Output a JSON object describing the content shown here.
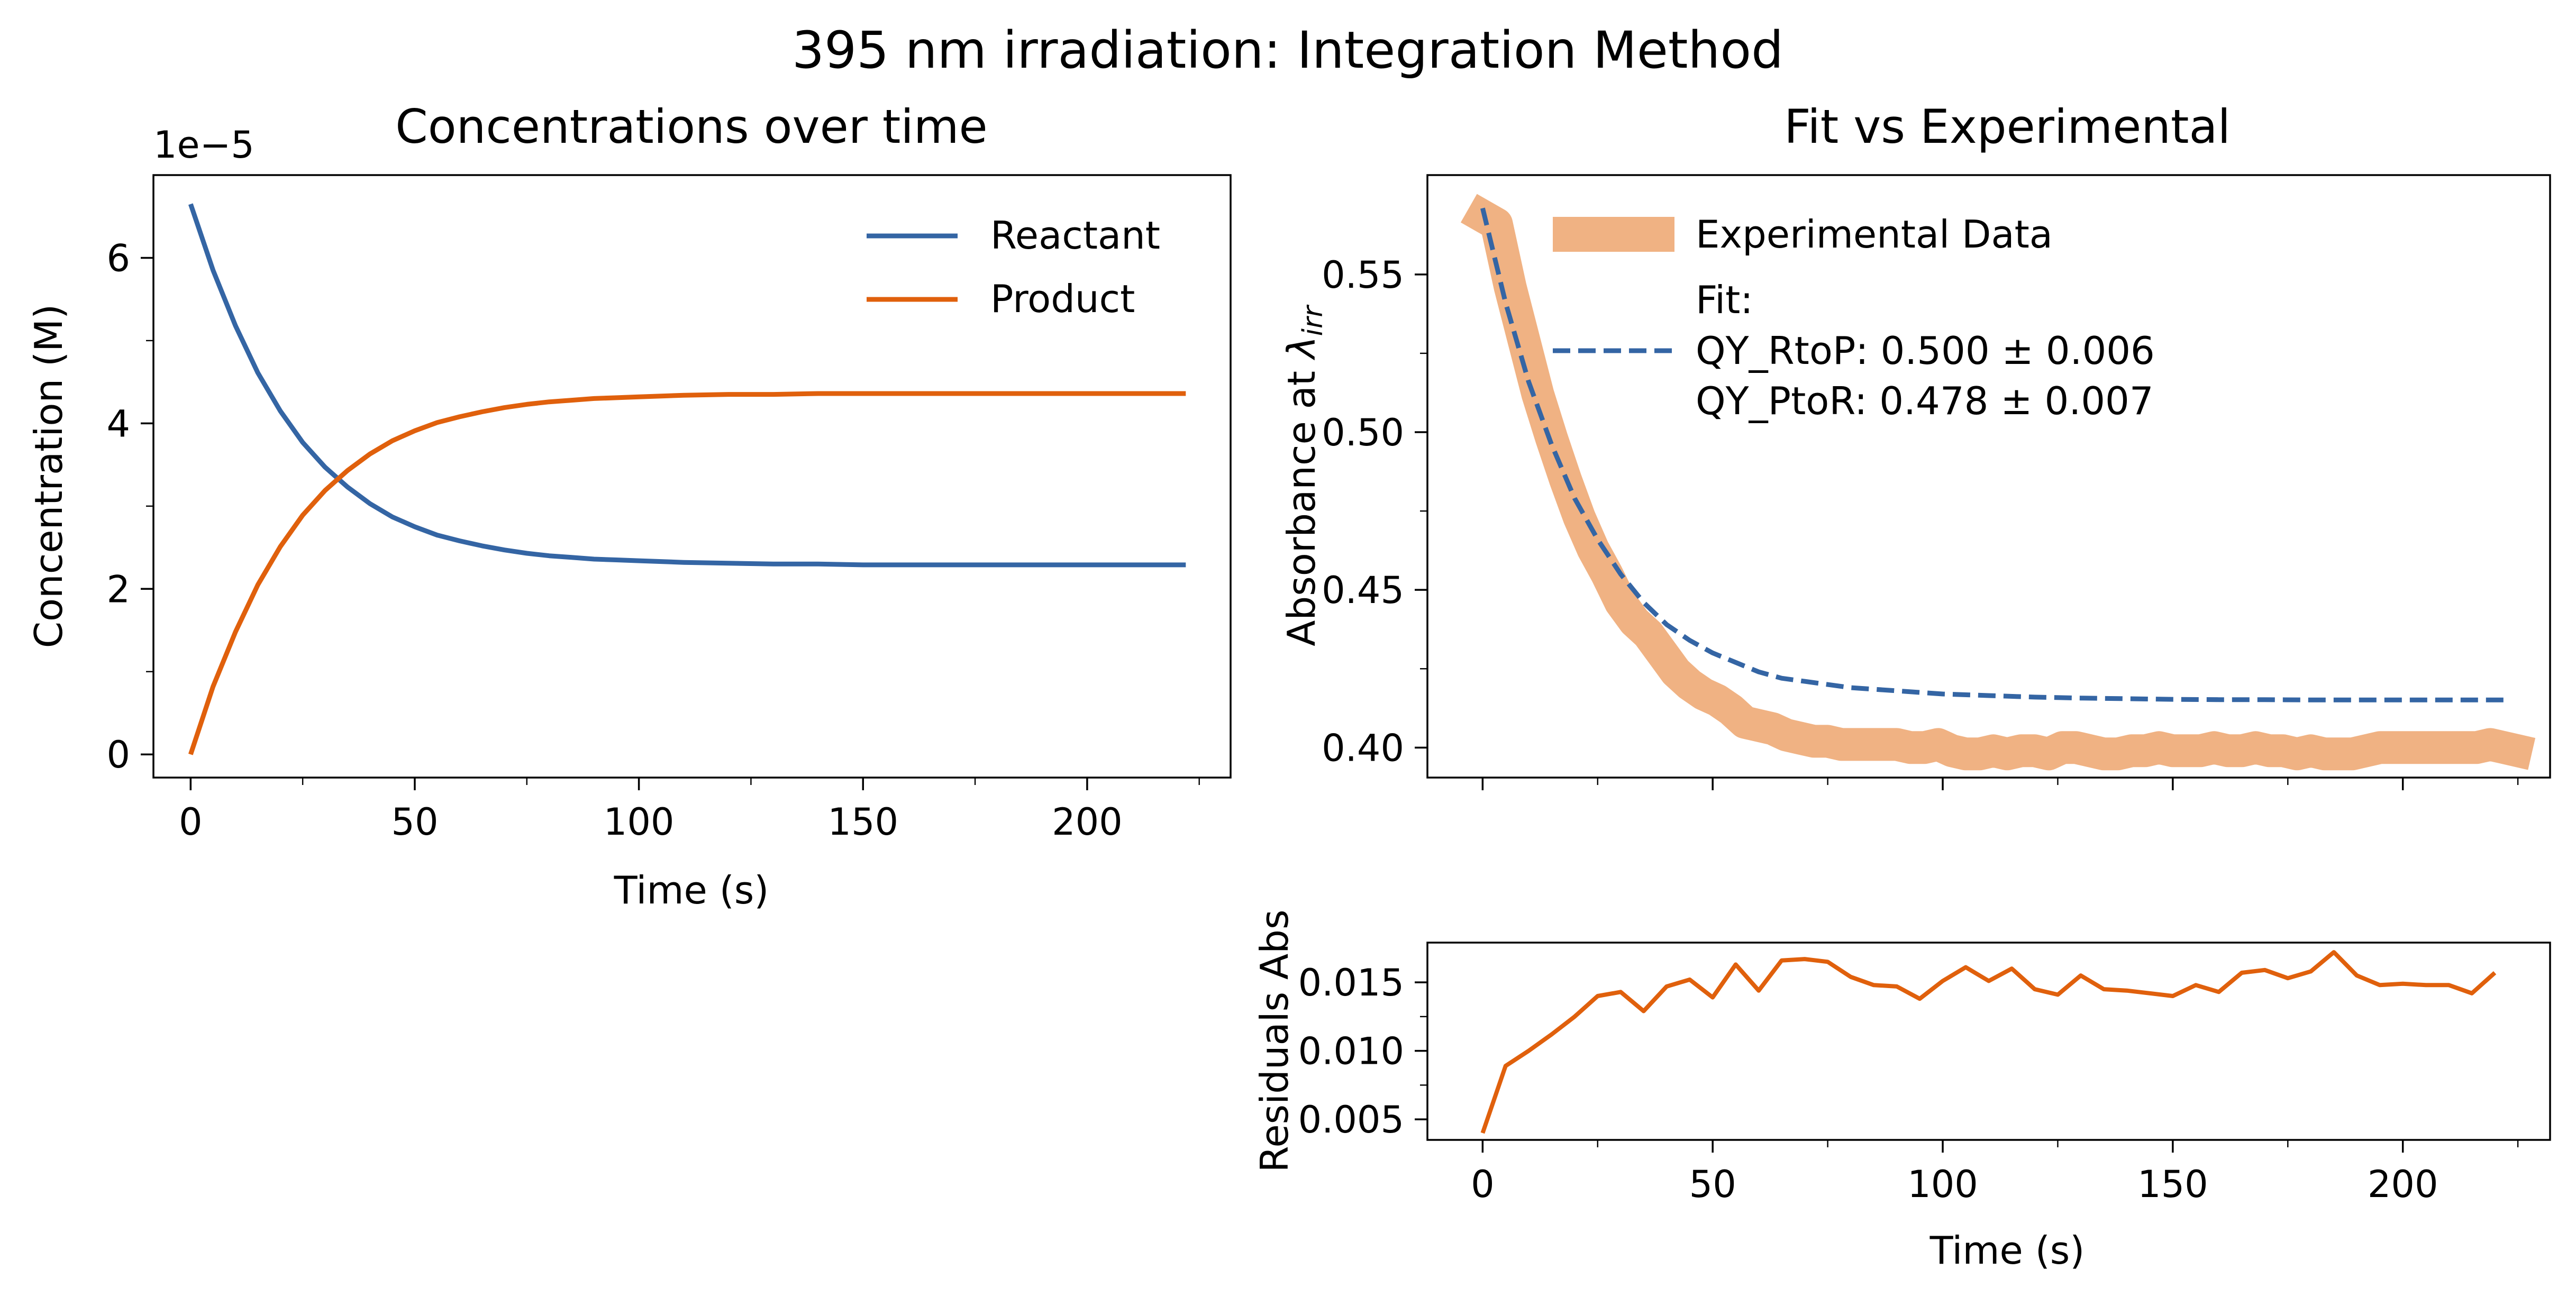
{
  "figure": {
    "suptitle": "395 nm irradiation: Integration Method"
  },
  "colors": {
    "reactant": "#3465a4",
    "product": "#e0600c",
    "experimental": "#f0b283",
    "fit": "#3465a4",
    "residual": "#e0600c"
  },
  "chart_data": [
    {
      "type": "line",
      "title": "Concentrations over time",
      "xlabel": "Time (s)",
      "ylabel": "Concentration (M)",
      "offset_text": "1e−5",
      "xlim": [
        -8.3,
        232
      ],
      "ylim": [
        -0.28,
        7.0
      ],
      "xticks": [
        0,
        50,
        100,
        150,
        200
      ],
      "xtick_labels": [
        "0",
        "50",
        "100",
        "150",
        "200"
      ],
      "yticks": [
        0,
        2,
        4,
        6
      ],
      "ytick_labels": [
        "0",
        "2",
        "4",
        "6"
      ],
      "legend_placement": "upper right",
      "x": [
        0,
        5,
        10,
        15,
        20,
        25,
        30,
        35,
        40,
        45,
        50,
        55,
        60,
        65,
        70,
        75,
        80,
        85,
        90,
        95,
        100,
        110,
        120,
        130,
        140,
        150,
        160,
        170,
        180,
        190,
        200,
        210,
        222
      ],
      "series": [
        {
          "name": "Reactant",
          "color_key": "reactant",
          "values": [
            6.65,
            5.85,
            5.18,
            4.61,
            4.15,
            3.77,
            3.47,
            3.23,
            3.03,
            2.87,
            2.75,
            2.65,
            2.58,
            2.52,
            2.47,
            2.43,
            2.4,
            2.38,
            2.36,
            2.35,
            2.34,
            2.32,
            2.31,
            2.3,
            2.3,
            2.29,
            2.29,
            2.29,
            2.29,
            2.29,
            2.29,
            2.29,
            2.29
          ]
        },
        {
          "name": "Product",
          "color_key": "product",
          "values": [
            0.0,
            0.82,
            1.48,
            2.05,
            2.51,
            2.89,
            3.19,
            3.43,
            3.63,
            3.79,
            3.91,
            4.01,
            4.08,
            4.14,
            4.19,
            4.23,
            4.26,
            4.28,
            4.3,
            4.31,
            4.32,
            4.34,
            4.35,
            4.35,
            4.36,
            4.36,
            4.36,
            4.36,
            4.36,
            4.36,
            4.36,
            4.36,
            4.36
          ]
        }
      ]
    },
    {
      "type": "line",
      "title": "Fit vs Experimental",
      "ylabel": "Absorbance at λ_irr",
      "xlim": [
        -12,
        232
      ],
      "ylim": [
        0.3905,
        0.5815
      ],
      "xticks": [
        0,
        50,
        100,
        150,
        200
      ],
      "yticks": [
        0.4,
        0.45,
        0.5,
        0.55
      ],
      "ytick_labels": [
        "0.40",
        "0.45",
        "0.50",
        "0.55"
      ],
      "legend_placement": "upper right",
      "legend": {
        "experimental": "Experimental Data",
        "fit_lines": [
          "Fit:",
          "QY_RtoP: 0.500 ± 0.006",
          "QY_PtoR: 0.478 ± 0.007"
        ]
      },
      "series": [
        {
          "name": "Experimental Data",
          "color_key": "experimental",
          "x": [
            -3,
            3,
            6,
            9,
            12,
            15,
            18,
            21,
            24,
            27,
            30,
            33,
            36,
            39,
            42,
            45,
            48,
            51,
            54,
            57,
            60,
            63,
            66,
            69,
            72,
            75,
            78,
            81,
            84,
            87,
            90,
            93,
            96,
            99,
            102,
            105,
            108,
            111,
            114,
            117,
            120,
            123,
            126,
            129,
            132,
            135,
            138,
            141,
            144,
            147,
            150,
            153,
            156,
            159,
            162,
            165,
            168,
            171,
            174,
            177,
            180,
            183,
            186,
            189,
            192,
            195,
            198,
            201,
            204,
            207,
            210,
            213,
            216,
            219,
            222,
            225,
            228
          ],
          "values": [
            0.571,
            0.566,
            0.546,
            0.529,
            0.512,
            0.498,
            0.485,
            0.473,
            0.463,
            0.455,
            0.446,
            0.44,
            0.436,
            0.43,
            0.424,
            0.42,
            0.417,
            0.415,
            0.412,
            0.408,
            0.407,
            0.406,
            0.404,
            0.403,
            0.402,
            0.402,
            0.401,
            0.401,
            0.401,
            0.401,
            0.401,
            0.4,
            0.4,
            0.401,
            0.399,
            0.398,
            0.398,
            0.399,
            0.398,
            0.399,
            0.399,
            0.398,
            0.4,
            0.4,
            0.399,
            0.398,
            0.398,
            0.399,
            0.399,
            0.4,
            0.399,
            0.399,
            0.399,
            0.4,
            0.399,
            0.399,
            0.4,
            0.399,
            0.399,
            0.398,
            0.399,
            0.398,
            0.398,
            0.398,
            0.399,
            0.4,
            0.4,
            0.4,
            0.4,
            0.4,
            0.4,
            0.4,
            0.4,
            0.401,
            0.4,
            0.399,
            0.398
          ]
        },
        {
          "name": "Fit",
          "color_key": "fit",
          "x": [
            0,
            5,
            10,
            15,
            20,
            25,
            30,
            35,
            40,
            45,
            50,
            55,
            60,
            65,
            70,
            75,
            80,
            90,
            100,
            110,
            120,
            130,
            140,
            150,
            160,
            170,
            180,
            190,
            200,
            210,
            222
          ],
          "values": [
            0.571,
            0.541,
            0.516,
            0.496,
            0.479,
            0.466,
            0.455,
            0.446,
            0.439,
            0.434,
            0.43,
            0.427,
            0.424,
            0.422,
            0.421,
            0.42,
            0.419,
            0.418,
            0.417,
            0.4165,
            0.416,
            0.4157,
            0.4155,
            0.4153,
            0.4152,
            0.4152,
            0.4151,
            0.4151,
            0.4151,
            0.4151,
            0.4151
          ]
        }
      ]
    },
    {
      "type": "line",
      "xlabel": "Time (s)",
      "ylabel": "Residuals Abs",
      "xlim": [
        -12,
        232
      ],
      "ylim": [
        0.0035,
        0.0179
      ],
      "xticks": [
        0,
        50,
        100,
        150,
        200
      ],
      "xtick_labels": [
        "0",
        "50",
        "100",
        "150",
        "200"
      ],
      "yticks": [
        0.005,
        0.01,
        0.015
      ],
      "ytick_labels": [
        "0.005",
        "0.010",
        "0.015"
      ],
      "series": [
        {
          "name": "Residuals",
          "color_key": "residual",
          "x": [
            0,
            5,
            10,
            15,
            20,
            25,
            30,
            35,
            40,
            45,
            50,
            55,
            60,
            65,
            70,
            75,
            80,
            85,
            90,
            95,
            100,
            105,
            110,
            115,
            120,
            125,
            130,
            135,
            140,
            145,
            150,
            155,
            160,
            165,
            170,
            175,
            180,
            185,
            190,
            195,
            200,
            205,
            210,
            215,
            220
          ],
          "values": [
            0.004,
            0.0089,
            0.01,
            0.0112,
            0.0125,
            0.014,
            0.0143,
            0.0129,
            0.0147,
            0.0152,
            0.0139,
            0.0163,
            0.0144,
            0.0166,
            0.0167,
            0.0165,
            0.0154,
            0.0148,
            0.0147,
            0.0138,
            0.0151,
            0.0161,
            0.0151,
            0.016,
            0.0145,
            0.0141,
            0.0155,
            0.0145,
            0.0144,
            0.0142,
            0.014,
            0.0148,
            0.0143,
            0.0157,
            0.0159,
            0.0153,
            0.0158,
            0.0172,
            0.0155,
            0.0148,
            0.0149,
            0.0148,
            0.0148,
            0.0142,
            0.0157
          ]
        }
      ]
    }
  ]
}
